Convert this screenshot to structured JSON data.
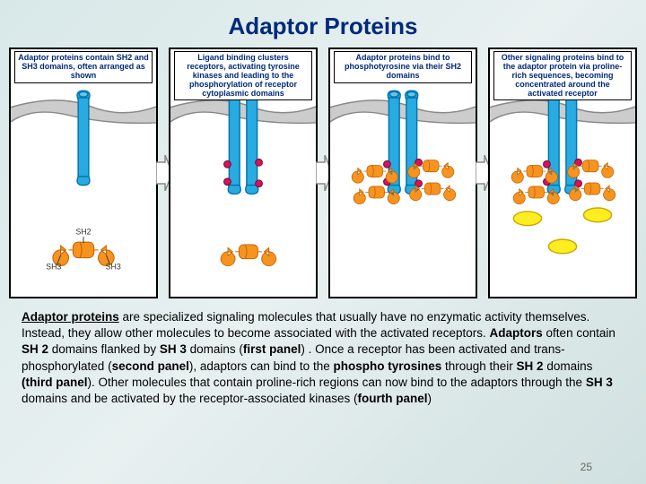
{
  "title": "Adaptor Proteins",
  "page_number": "25",
  "colors": {
    "title": "#002a7a",
    "membrane": "#cccccc",
    "membrane_border": "#888888",
    "receptor": "#29abe2",
    "receptor_border": "#0077aa",
    "sh2": "#f7931e",
    "sh2_border": "#c06000",
    "sh3": "#f7931e",
    "phospho": "#d4145a",
    "partner": "#fcee21",
    "partner_border": "#cca800",
    "green_bg": "#b9e09f",
    "arrow": "#888888",
    "panel_border": "#000000"
  },
  "panels": [
    {
      "caption": "Adaptor proteins contain SH2 and SH3 domains, often arranged as shown",
      "labels": {
        "sh2": "SH2",
        "sh3_left": "SH3",
        "sh3_right": "SH3"
      },
      "show_single_receptor": true,
      "show_adaptor_labeled": true,
      "show_phospho": false,
      "show_bound_adaptors": false,
      "show_partners": false
    },
    {
      "caption": "Ligand binding clusters receptors, activating tyrosine kinases and leading to the phosphorylation of receptor cytoplasmic domains",
      "show_single_receptor": false,
      "show_dimer": true,
      "show_phospho": true,
      "show_adaptor_labeled": false,
      "show_bound_adaptors": false,
      "show_partners": false,
      "show_loose_adaptor": true
    },
    {
      "caption": "Adaptor proteins bind to phosphotyrosine via their SH2 domains",
      "show_dimer": true,
      "show_phospho": true,
      "show_bound_adaptors": true,
      "show_partners": false
    },
    {
      "caption": "Other signaling proteins bind to the adaptor protein via proline-rich sequences, becoming concentrated around the activated receptor",
      "show_dimer": true,
      "show_phospho": true,
      "show_bound_adaptors": true,
      "show_partners": true
    }
  ],
  "body": {
    "p1_bold": "Adaptor proteins",
    "p1": " are specialized signaling molecules that usually have no enzymatic activity themselves.  Instead, they allow other molecules to become associated with the activated receptors. ",
    "p2_bold": "Adaptors",
    "p2": " often contain ",
    "p3_bold": "SH 2",
    "p3": " domains flanked by ",
    "p4_bold": "SH 3",
    "p4": " domains (",
    "p5_bold": "first panel",
    "p5": ") .  Once a receptor has been activated and trans-phosphorylated (",
    "p6_bold": "second panel",
    "p6": "), adaptors can bind to the ",
    "p7_bold": "phospho tyrosines",
    "p7": " through their ",
    "p8_bold": "SH 2",
    "p8": " domains ",
    "p9_bold": "(third panel",
    "p9": ").  Other molecules that contain proline-rich regions can now bind to the adaptors through the ",
    "p10_bold": "SH 3",
    "p10": " domains and be activated by the receptor-associated kinases (",
    "p11_bold": "fourth panel",
    "p11": ")"
  }
}
